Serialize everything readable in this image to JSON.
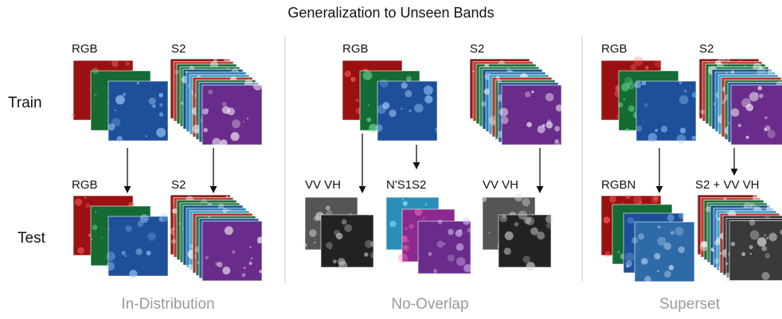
{
  "title": "Generalization to Unseen Bands",
  "rows": [
    "Train",
    "Test"
  ],
  "panels": [
    {
      "caption": "In-Distribution",
      "train": [
        "RGB",
        "S2"
      ],
      "test": [
        "RGB",
        "S2"
      ]
    },
    {
      "caption": "No-Overlap",
      "train": [
        "RGB",
        "S2"
      ],
      "test": [
        "VV VH",
        "N'S1S2",
        "VV VH"
      ]
    },
    {
      "caption": "Superset",
      "train": [
        "RGB",
        "S2"
      ],
      "test": [
        "RGBN",
        "S2 + VV VH"
      ]
    }
  ]
}
